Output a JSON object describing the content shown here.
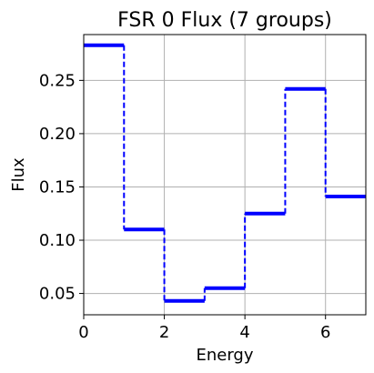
{
  "chart_data": {
    "type": "line",
    "style": "step",
    "title": "FSR 0 Flux (7 groups)",
    "xlabel": "Energy",
    "ylabel": "Flux",
    "xlim": [
      0,
      7
    ],
    "ylim": [
      0.03,
      0.293
    ],
    "grid": true,
    "xticks": [
      0,
      2,
      4,
      6
    ],
    "yticks": [
      0.05,
      0.1,
      0.15,
      0.2,
      0.25
    ],
    "xtick_labels": [
      "0",
      "2",
      "4",
      "6"
    ],
    "ytick_labels": [
      "0.05",
      "0.10",
      "0.15",
      "0.20",
      "0.25"
    ],
    "series": [
      {
        "color": "#0000ff",
        "groups": [
          {
            "x0": 0,
            "x1": 1,
            "y": 0.283
          },
          {
            "x0": 1,
            "x1": 2,
            "y": 0.11
          },
          {
            "x0": 2,
            "x1": 3,
            "y": 0.043
          },
          {
            "x0": 3,
            "x1": 4,
            "y": 0.055
          },
          {
            "x0": 4,
            "x1": 5,
            "y": 0.125
          },
          {
            "x0": 5,
            "x1": 6,
            "y": 0.242
          },
          {
            "x0": 6,
            "x1": 7,
            "y": 0.141
          }
        ]
      }
    ]
  }
}
